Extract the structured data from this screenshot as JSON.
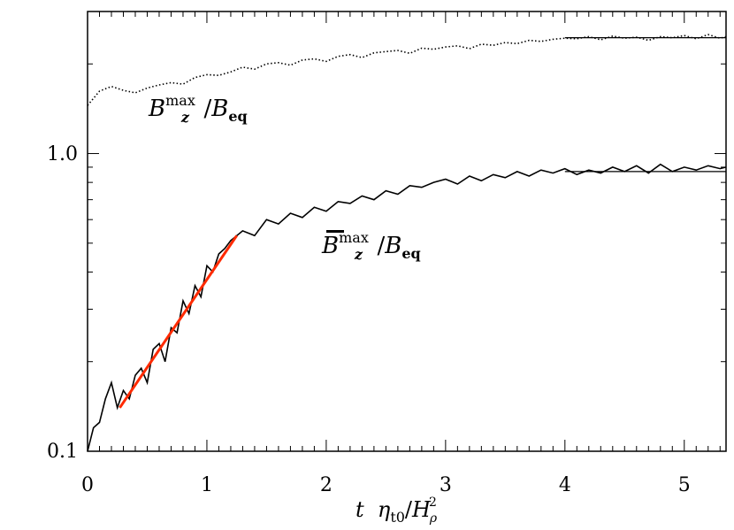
{
  "chart_data": {
    "type": "line",
    "title": "",
    "xlabel": {
      "t": "t",
      "eta": "η",
      "eta_sub": "t0",
      "slash": "/",
      "H": "H",
      "H_sup": "2",
      "H_sub": "ρ"
    },
    "ylabel": "",
    "xlim": [
      0,
      5.35
    ],
    "ylim": [
      0.1,
      3.0
    ],
    "yscale": "log",
    "x_ticks": [
      "0",
      "1",
      "2",
      "3",
      "4",
      "5"
    ],
    "y_ticks": [
      "0.1",
      "1.0"
    ],
    "grid": false,
    "colors": {
      "axes": "#000000",
      "fit_growth": "#ff2a00",
      "series": "#000000"
    },
    "series": [
      {
        "label_parts": {
          "B": "B",
          "sup": "max",
          "sub": "z",
          "slash": "/",
          "B2": "B",
          "sub2": "eq"
        },
        "style": "dotted",
        "t": [
          0,
          0.1,
          0.2,
          0.3,
          0.4,
          0.5,
          0.6,
          0.7,
          0.8,
          0.9,
          1.0,
          1.1,
          1.2,
          1.3,
          1.4,
          1.5,
          1.6,
          1.7,
          1.8,
          1.9,
          2.0,
          2.1,
          2.2,
          2.3,
          2.4,
          2.5,
          2.6,
          2.7,
          2.8,
          2.9,
          3.0,
          3.1,
          3.2,
          3.3,
          3.4,
          3.5,
          3.6,
          3.7,
          3.8,
          3.9,
          4.0,
          4.1,
          4.2,
          4.3,
          4.4,
          4.5,
          4.6,
          4.7,
          4.8,
          4.9,
          5.0,
          5.1,
          5.2,
          5.3,
          5.35
        ],
        "y": [
          1.45,
          1.62,
          1.68,
          1.63,
          1.6,
          1.66,
          1.7,
          1.73,
          1.71,
          1.8,
          1.84,
          1.83,
          1.88,
          1.95,
          1.92,
          2.0,
          2.02,
          1.98,
          2.06,
          2.08,
          2.04,
          2.12,
          2.15,
          2.1,
          2.18,
          2.2,
          2.22,
          2.17,
          2.26,
          2.24,
          2.28,
          2.3,
          2.25,
          2.33,
          2.31,
          2.36,
          2.34,
          2.4,
          2.38,
          2.42,
          2.44,
          2.43,
          2.47,
          2.41,
          2.48,
          2.44,
          2.46,
          2.4,
          2.47,
          2.45,
          2.49,
          2.43,
          2.51,
          2.44,
          2.47
        ]
      },
      {
        "label_parts": {
          "B": "B",
          "sup": "max",
          "sub": "z",
          "slash": "/",
          "B2": "B",
          "sub2": "eq",
          "overbar": true
        },
        "style": "solid",
        "t": [
          0,
          0.05,
          0.1,
          0.15,
          0.2,
          0.25,
          0.3,
          0.35,
          0.4,
          0.45,
          0.5,
          0.55,
          0.6,
          0.65,
          0.7,
          0.75,
          0.8,
          0.85,
          0.9,
          0.95,
          1.0,
          1.05,
          1.1,
          1.15,
          1.2,
          1.3,
          1.4,
          1.5,
          1.6,
          1.7,
          1.8,
          1.9,
          2.0,
          2.1,
          2.2,
          2.3,
          2.4,
          2.5,
          2.6,
          2.7,
          2.8,
          2.9,
          3.0,
          3.1,
          3.2,
          3.3,
          3.4,
          3.5,
          3.6,
          3.7,
          3.8,
          3.9,
          4.0,
          4.1,
          4.2,
          4.3,
          4.4,
          4.5,
          4.6,
          4.7,
          4.8,
          4.9,
          5.0,
          5.1,
          5.2,
          5.3,
          5.35
        ],
        "y": [
          0.1,
          0.12,
          0.125,
          0.15,
          0.17,
          0.14,
          0.16,
          0.15,
          0.18,
          0.19,
          0.17,
          0.22,
          0.23,
          0.2,
          0.26,
          0.25,
          0.32,
          0.29,
          0.36,
          0.33,
          0.42,
          0.4,
          0.46,
          0.48,
          0.51,
          0.55,
          0.53,
          0.6,
          0.58,
          0.63,
          0.61,
          0.66,
          0.64,
          0.69,
          0.68,
          0.72,
          0.7,
          0.75,
          0.73,
          0.78,
          0.77,
          0.8,
          0.82,
          0.79,
          0.84,
          0.81,
          0.85,
          0.83,
          0.87,
          0.84,
          0.88,
          0.86,
          0.89,
          0.85,
          0.88,
          0.86,
          0.9,
          0.87,
          0.91,
          0.86,
          0.92,
          0.87,
          0.9,
          0.88,
          0.91,
          0.89,
          0.9
        ]
      }
    ],
    "fits": [
      {
        "name": "growth-fit",
        "color": "#ff2a00",
        "t": [
          0.27,
          1.25
        ],
        "y": [
          0.14,
          0.53
        ]
      },
      {
        "name": "saturation-fit-dotted",
        "color": "#000000",
        "t": [
          4.0,
          5.35
        ],
        "y": [
          2.45,
          2.45
        ]
      },
      {
        "name": "saturation-fit-solid",
        "color": "#000000",
        "t": [
          4.0,
          5.35
        ],
        "y": [
          0.87,
          0.87
        ]
      }
    ]
  }
}
